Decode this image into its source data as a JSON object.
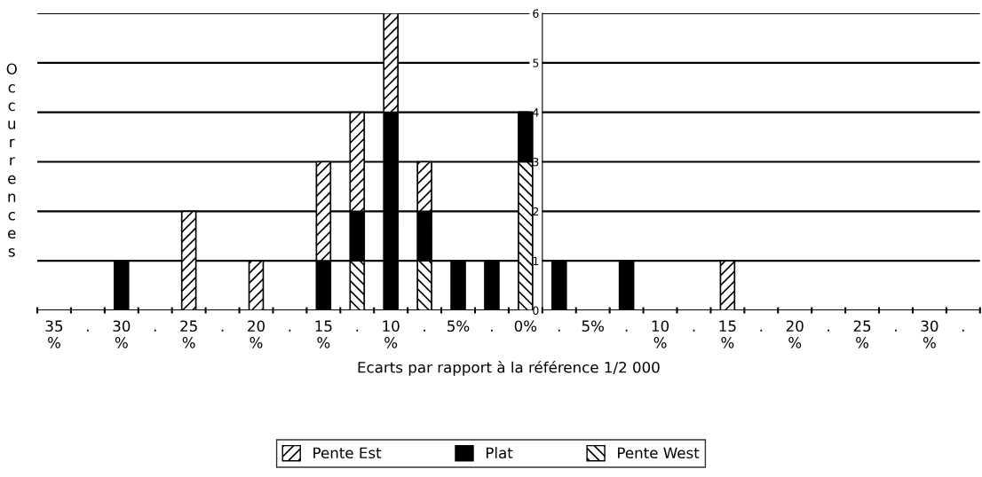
{
  "chart_data": {
    "type": "bar",
    "stacked": true,
    "xlabel": "Ecarts par rapport à la référence 1/2 000",
    "ylabel": "Occurrences",
    "categories": [
      "35\n%",
      ".",
      "30\n%",
      ".",
      "25\n%",
      ".",
      "20\n%",
      ".",
      "15\n%",
      ".",
      "10\n%",
      ".",
      "5%",
      ".",
      "0%",
      ".",
      "5%",
      ".",
      "10\n%",
      ".",
      "15\n%",
      ".",
      "20\n%",
      ".",
      "25\n%",
      ".",
      "30\n%",
      "."
    ],
    "series": [
      {
        "name": "Pente West",
        "color": "#000000",
        "values": [
          0,
          0,
          0,
          0,
          0,
          0,
          0,
          0,
          0,
          1,
          0,
          1,
          0,
          0,
          3,
          0,
          0,
          0,
          0,
          0,
          0,
          0,
          0,
          0,
          0,
          0,
          0,
          0
        ]
      },
      {
        "name": "Plat",
        "color": "#000000",
        "values": [
          0,
          0,
          1,
          0,
          0,
          0,
          0,
          0,
          1,
          1,
          4,
          1,
          1,
          1,
          1,
          1,
          0,
          1,
          0,
          0,
          0,
          0,
          0,
          0,
          0,
          0,
          0,
          0
        ]
      },
      {
        "name": "Pente Est",
        "color": "#000000",
        "values": [
          0,
          0,
          0,
          0,
          2,
          0,
          1,
          0,
          2,
          2,
          2,
          1,
          0,
          0,
          0,
          0,
          0,
          0,
          0,
          0,
          1,
          0,
          0,
          0,
          0,
          0,
          0,
          0
        ]
      }
    ],
    "ylim": [
      0,
      6
    ],
    "yticks": [
      0,
      1,
      2,
      3,
      4,
      5,
      6
    ],
    "grid": "y",
    "legend": "bottom"
  }
}
